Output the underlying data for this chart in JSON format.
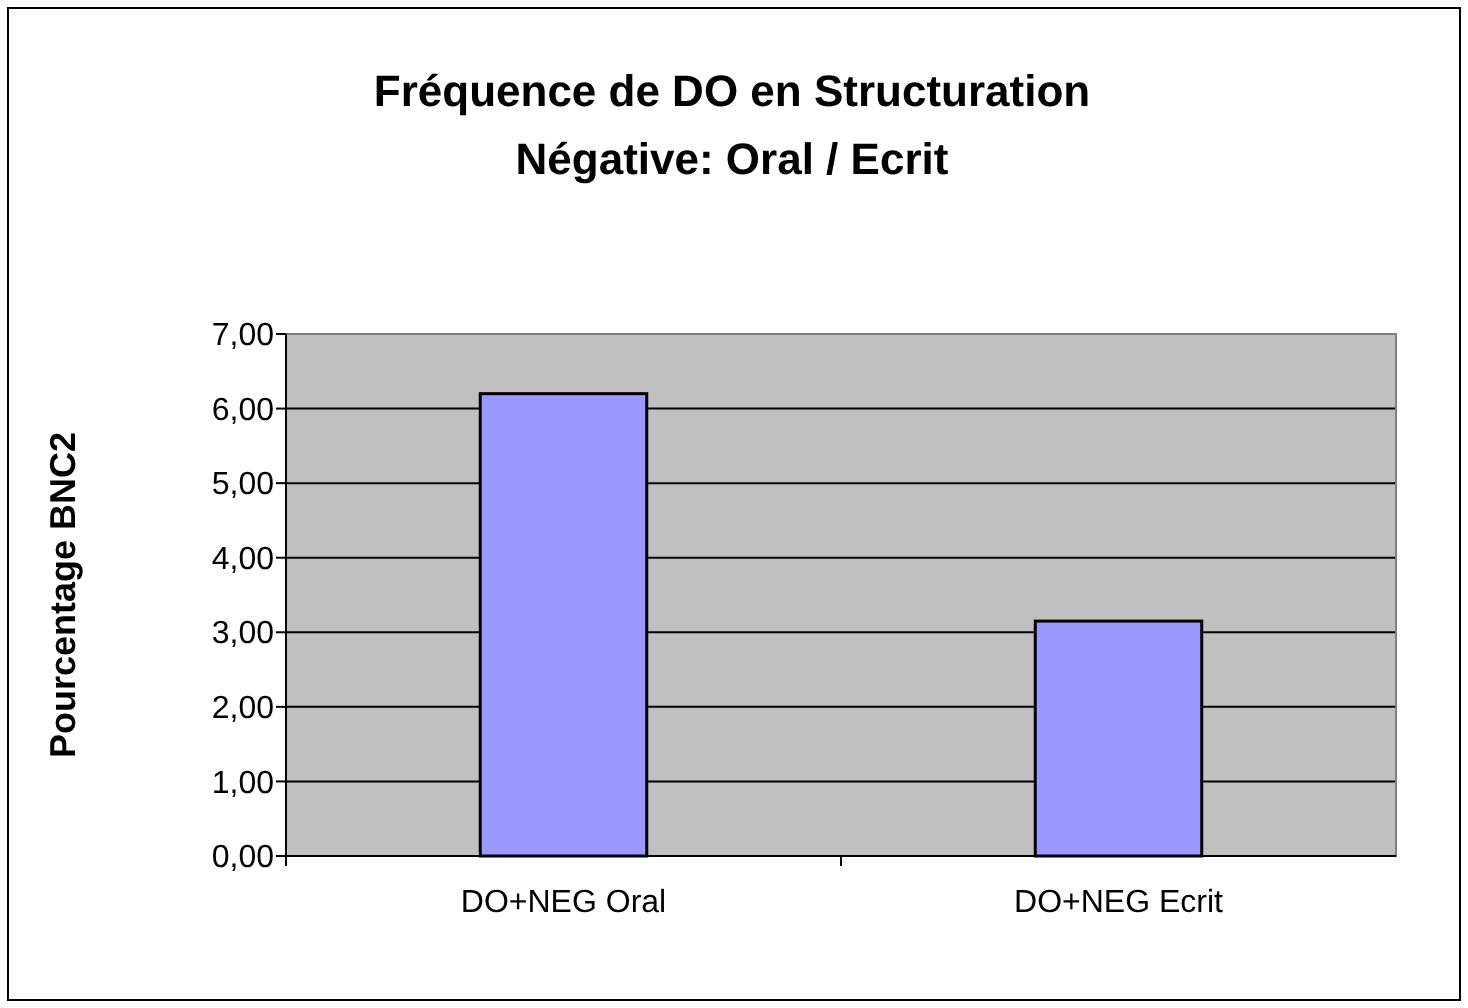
{
  "chart_data": {
    "type": "bar",
    "title": "Fréquence de DO en Structuration\nNégative: Oral / Ecrit",
    "ylabel": "Pourcentage BNC2",
    "categories": [
      "DO+NEG Oral",
      "DO+NEG Ecrit"
    ],
    "values": [
      6.2,
      3.15
    ],
    "color": "#9999ff",
    "ylim": [
      0,
      7
    ],
    "yticks": [
      {
        "value": 0,
        "label": "0,00"
      },
      {
        "value": 1,
        "label": "1,00"
      },
      {
        "value": 2,
        "label": "2,00"
      },
      {
        "value": 3,
        "label": "3,00"
      },
      {
        "value": 4,
        "label": "4,00"
      },
      {
        "value": 5,
        "label": "5,00"
      },
      {
        "value": 6,
        "label": "6,00"
      },
      {
        "value": 7,
        "label": "7,00"
      }
    ],
    "grid": "y"
  }
}
